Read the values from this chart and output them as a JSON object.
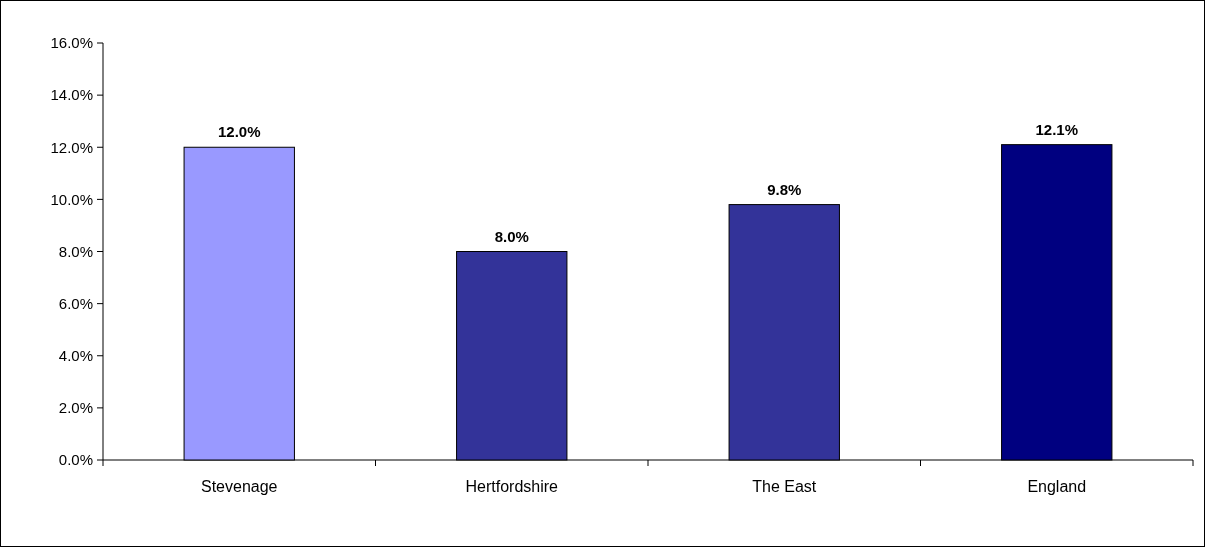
{
  "chart_data": {
    "type": "bar",
    "categories": [
      "Stevenage",
      "Hertfordshire",
      "The East",
      "England"
    ],
    "values": [
      12.0,
      8.0,
      9.8,
      12.1
    ],
    "colors": [
      "#9999ff",
      "#333399",
      "#333399",
      "#000080"
    ],
    "value_labels": [
      "12.0%",
      "8.0%",
      "9.8%",
      "12.1%"
    ],
    "ylim": [
      0,
      16
    ],
    "yticks": [
      {
        "value": 0,
        "label": "0.0%"
      },
      {
        "value": 2,
        "label": "2.0%"
      },
      {
        "value": 4,
        "label": "4.0%"
      },
      {
        "value": 6,
        "label": "6.0%"
      },
      {
        "value": 8,
        "label": "8.0%"
      },
      {
        "value": 10,
        "label": "10.0%"
      },
      {
        "value": 12,
        "label": "12.0%"
      },
      {
        "value": 14,
        "label": "14.0%"
      },
      {
        "value": 16,
        "label": "16.0%"
      }
    ],
    "grid": false
  }
}
